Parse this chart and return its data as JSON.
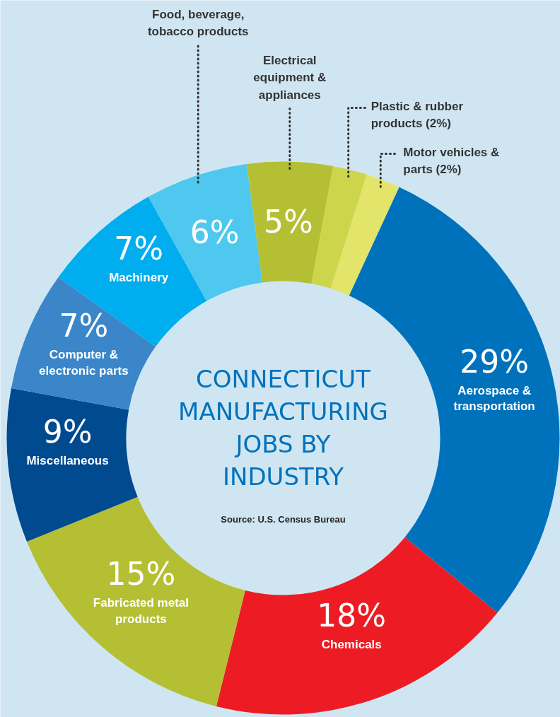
{
  "chart_data": {
    "type": "donut",
    "title": "CONNECTICUT MANUFACTURING JOBS BY INDUSTRY",
    "categories": [
      "Aerospace & transportation",
      "Chemicals",
      "Fabricated metal products",
      "Miscellaneous",
      "Computer & electronic parts",
      "Machinery",
      "Food, beverage, tobacco products",
      "Electrical equipment & appliances",
      "Plastic & rubber products (2%)",
      "Motor vehicles & parts (2%)"
    ],
    "values": [
      29,
      18,
      15,
      9,
      7,
      7,
      6,
      5,
      2,
      2
    ],
    "colors": [
      "#0072bc",
      "#ed1c24",
      "#b5bf34",
      "#004a8f",
      "#3a86c8",
      "#00aeef",
      "#4fc8f0",
      "#b5bf34",
      "#cdd64a",
      "#e2e56a"
    ],
    "value_labels": [
      "29%",
      "18%",
      "15%",
      "9%",
      "7%",
      "7%",
      "6%",
      "5%",
      null,
      null
    ],
    "annotations": [
      "Source: U.S. Census Bureau"
    ]
  }
}
